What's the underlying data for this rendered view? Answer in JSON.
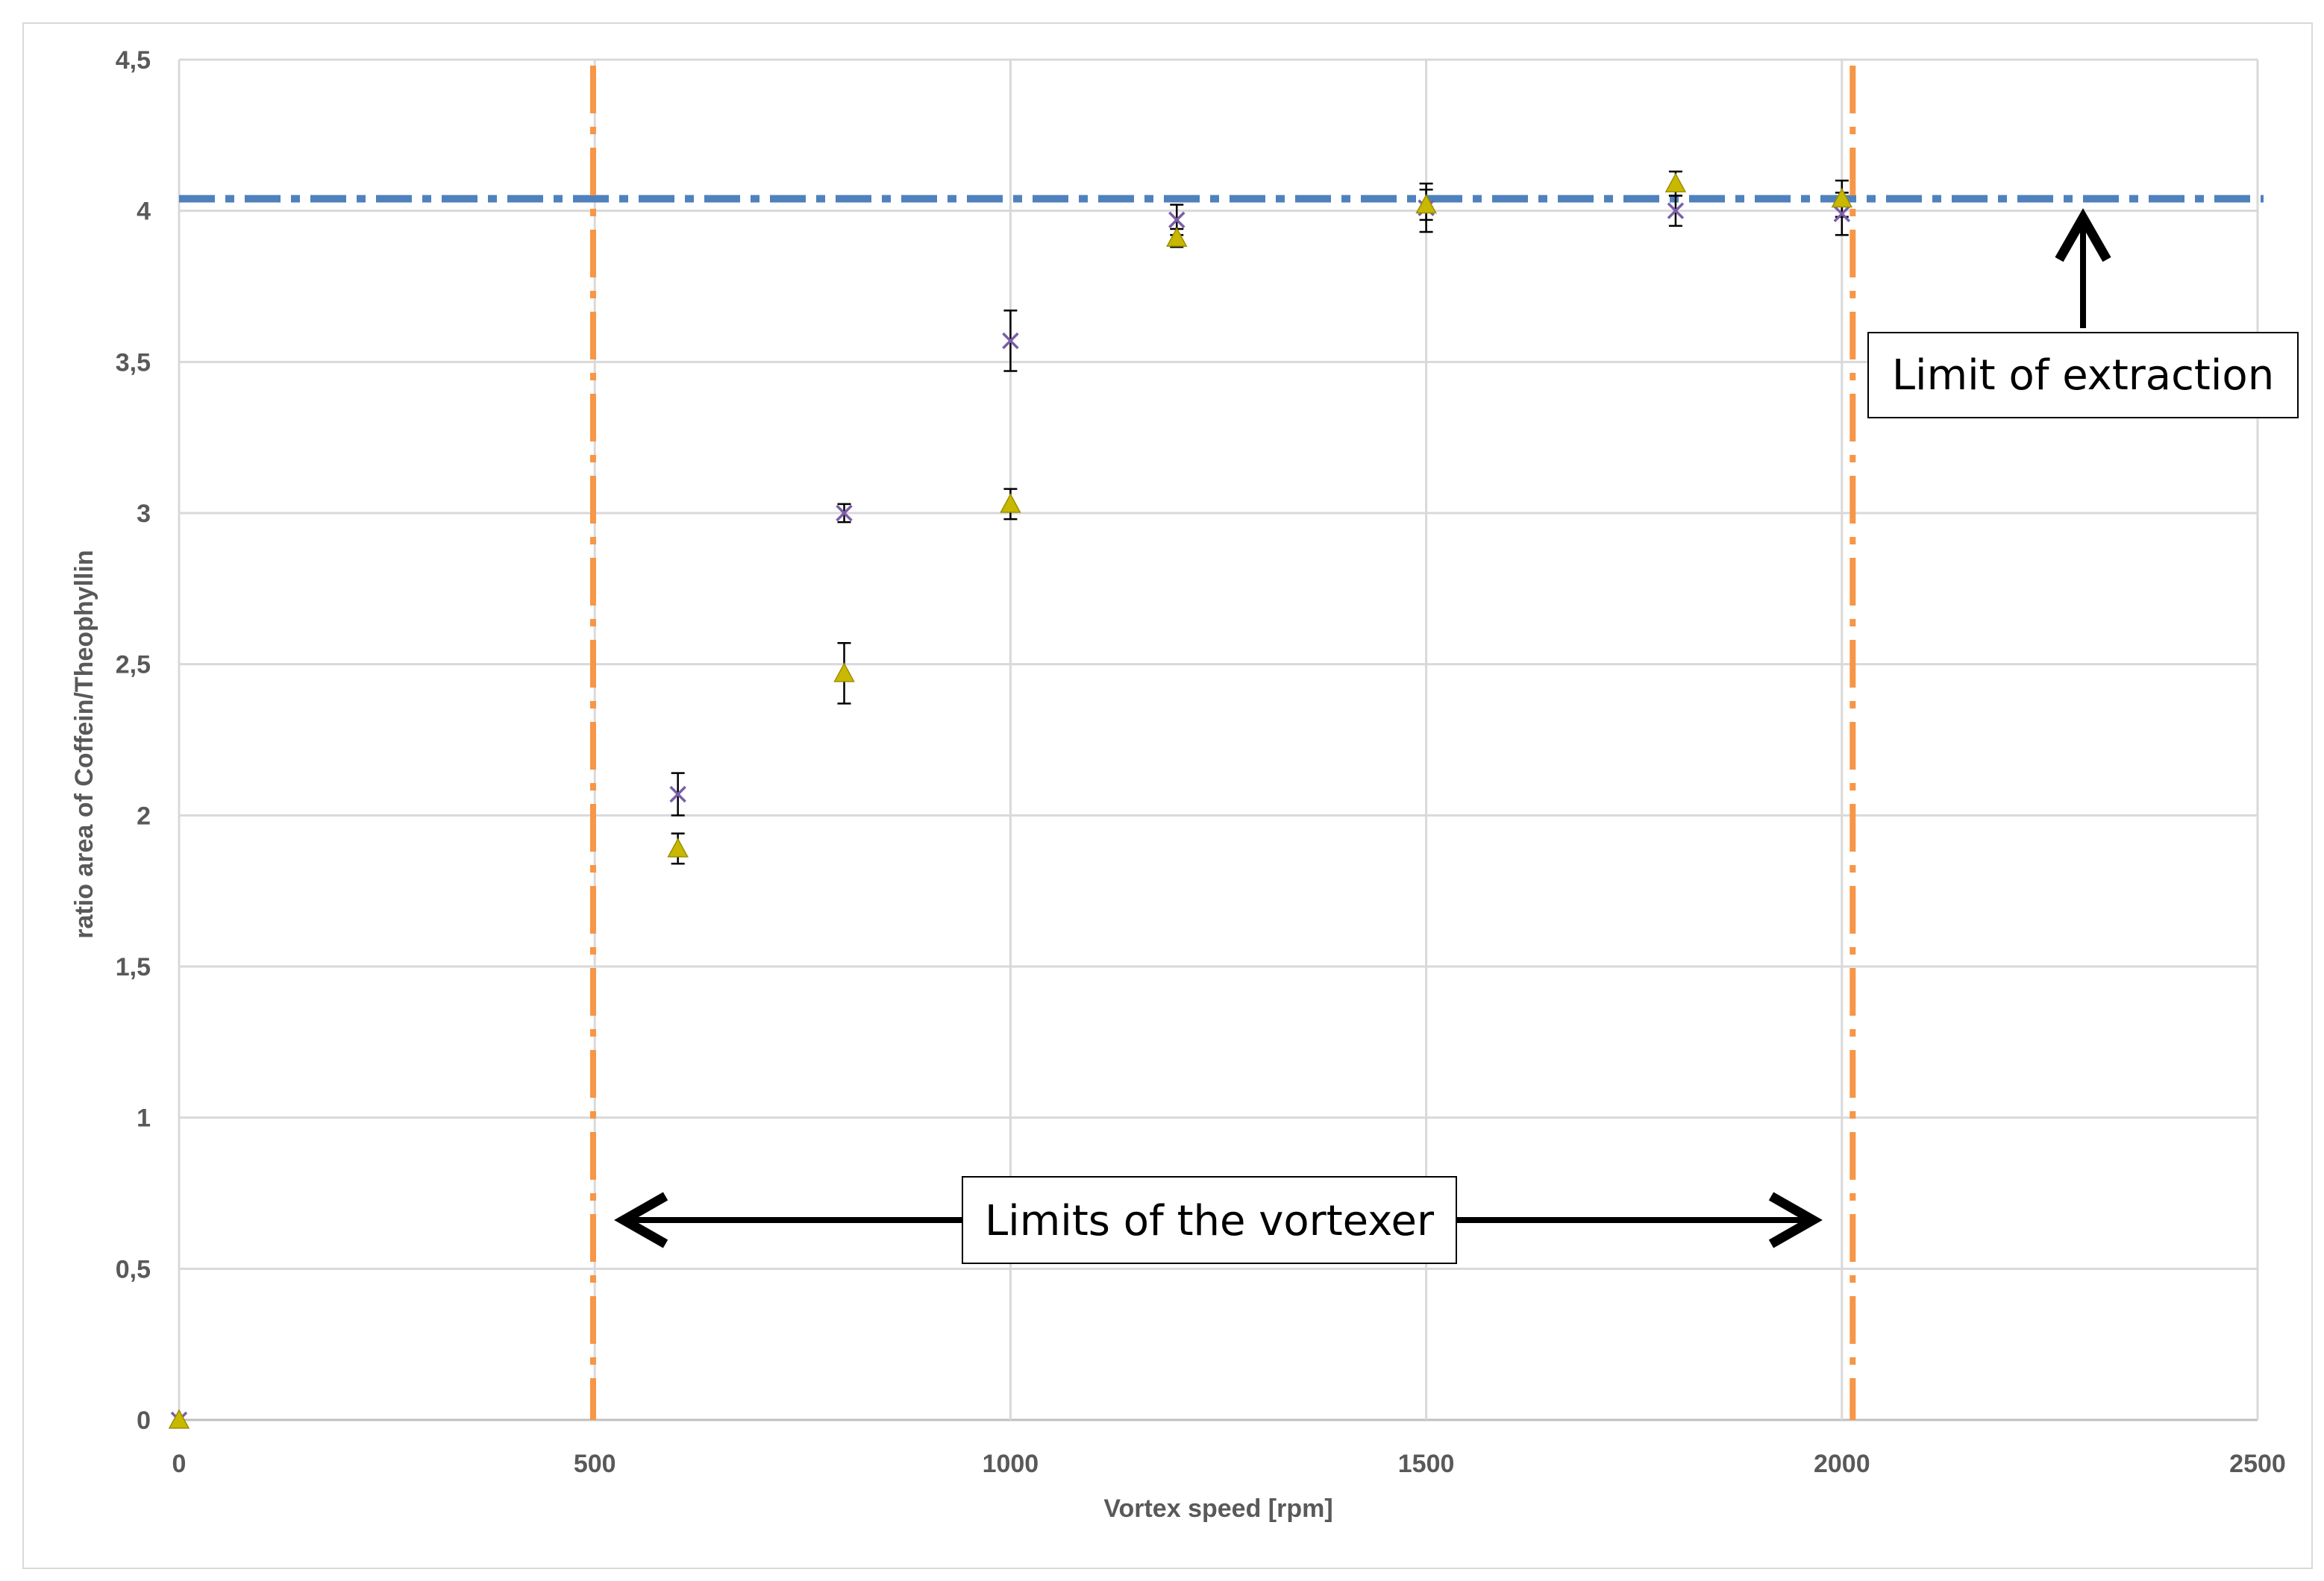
{
  "chart_data": {
    "type": "scatter",
    "title": "",
    "xlabel": "Vortex speed [rpm]",
    "ylabel": "ratio area of Coffein/Theophyllin",
    "xlim": [
      0,
      2500
    ],
    "ylim": [
      0,
      4.5
    ],
    "x_ticks": [
      "0",
      "500",
      "1000",
      "1500",
      "2000",
      "2500"
    ],
    "y_ticks": [
      "0",
      "0,5",
      "1",
      "1,5",
      "2",
      "2,5",
      "3",
      "3,5",
      "4",
      "4,5"
    ],
    "grid": true,
    "legend": "none",
    "series": [
      {
        "marker": "x",
        "color": "#7b5ea7",
        "points": [
          {
            "x": 0,
            "y": 0,
            "err": 0
          },
          {
            "x": 600,
            "y": 2.07,
            "err": 0.07
          },
          {
            "x": 800,
            "y": 3.0,
            "err": 0.03
          },
          {
            "x": 1000,
            "y": 3.57,
            "err": 0.1
          },
          {
            "x": 1200,
            "y": 3.97,
            "err": 0.05
          },
          {
            "x": 1500,
            "y": 4.01,
            "err": 0.08
          },
          {
            "x": 1800,
            "y": 4.0,
            "err": 0.05
          },
          {
            "x": 2000,
            "y": 3.99,
            "err": 0.07
          }
        ]
      },
      {
        "marker": "triangle",
        "color": "#c9b800",
        "points": [
          {
            "x": 0,
            "y": 0,
            "err": 0
          },
          {
            "x": 600,
            "y": 1.89,
            "err": 0.05
          },
          {
            "x": 800,
            "y": 2.47,
            "err": 0.1
          },
          {
            "x": 1000,
            "y": 3.03,
            "err": 0.05
          },
          {
            "x": 1200,
            "y": 3.91,
            "err": 0.03
          },
          {
            "x": 1500,
            "y": 4.02,
            "err": 0.05
          },
          {
            "x": 1800,
            "y": 4.09,
            "err": 0.04
          },
          {
            "x": 2000,
            "y": 4.04,
            "err": 0.06
          }
        ]
      }
    ],
    "reference_lines": [
      {
        "orientation": "horizontal",
        "value": 4.04,
        "color": "#4f81bd",
        "style": "dash-dot"
      },
      {
        "orientation": "vertical",
        "value": 498,
        "color": "#f79646",
        "style": "dash-dot"
      },
      {
        "orientation": "vertical",
        "value": 2013,
        "color": "#f79646",
        "style": "dash-dot"
      }
    ],
    "annotations": {
      "extraction_limit": "Limit of extraction",
      "vortexer_limits": "Limits of the vortexer"
    }
  }
}
